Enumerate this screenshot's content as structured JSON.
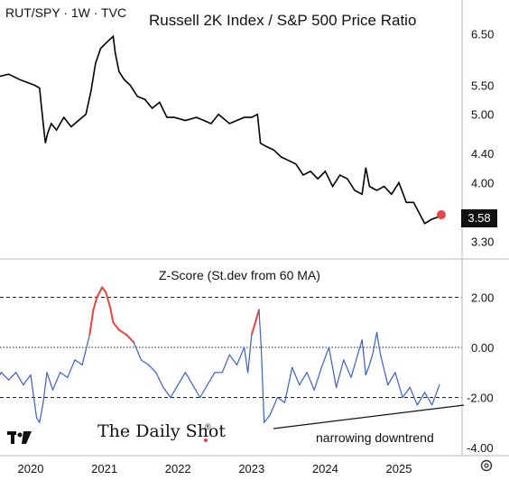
{
  "header": {
    "symbol": "RUT/SPY · 1W · TVC"
  },
  "brand": {
    "tv_logo": "TradingView",
    "daily_shot": "The Daily Shot",
    "registered": "®"
  },
  "current_value": "3.58",
  "colors": {
    "line": "#000000",
    "z_line": "#3b5fc4",
    "z_high": "#e8463c",
    "marker": "#e5484d",
    "badge_bg": "#111111"
  },
  "chart_data": [
    {
      "type": "line",
      "title": "Russell 2K Index / S&P 500 Price Ratio",
      "scale": "log",
      "y_ticks": [
        "6.50",
        "5.50",
        "5.00",
        "4.40",
        "4.00",
        "3.30"
      ],
      "x_ticks": [
        "2020",
        "2021",
        "2022",
        "2023",
        "2024",
        "2025"
      ],
      "series": [
        {
          "x": [
            2019.55,
            2019.7,
            2019.85,
            2019.95,
            2020.05,
            2020.12,
            2020.17,
            2020.2,
            2020.23,
            2020.28,
            2020.35,
            2020.45,
            2020.55,
            2020.65,
            2020.75,
            2020.82,
            2020.88,
            2020.95,
            2021.05,
            2021.12,
            2021.15,
            2021.2,
            2021.27,
            2021.35,
            2021.45,
            2021.55,
            2021.65,
            2021.75,
            2021.85,
            2021.95,
            2022.1,
            2022.25,
            2022.35,
            2022.45,
            2022.55,
            2022.6,
            2022.7,
            2022.8,
            2022.9,
            2023.0,
            2023.08,
            2023.12,
            2023.2,
            2023.3,
            2023.4,
            2023.5,
            2023.6,
            2023.7,
            2023.8,
            2023.9,
            2024.0,
            2024.1,
            2024.2,
            2024.3,
            2024.4,
            2024.5,
            2024.55,
            2024.6,
            2024.7,
            2024.8,
            2024.9,
            2025.0,
            2025.1,
            2025.2,
            2025.3,
            2025.35,
            2025.45,
            2025.55
          ],
          "y": [
            5.65,
            5.7,
            5.6,
            5.55,
            5.5,
            5.45,
            4.85,
            4.55,
            4.7,
            4.85,
            4.75,
            4.95,
            4.8,
            4.9,
            5.0,
            5.4,
            5.9,
            6.2,
            6.35,
            6.45,
            6.1,
            5.75,
            5.6,
            5.5,
            5.3,
            5.25,
            5.1,
            5.2,
            4.95,
            4.95,
            4.9,
            4.95,
            4.9,
            4.85,
            5.0,
            4.95,
            4.85,
            4.9,
            4.95,
            4.95,
            5.0,
            4.55,
            4.5,
            4.45,
            4.35,
            4.3,
            4.25,
            4.1,
            4.15,
            4.05,
            4.15,
            3.95,
            4.1,
            4.05,
            3.9,
            3.85,
            4.2,
            3.95,
            3.9,
            3.95,
            3.85,
            4.0,
            3.75,
            3.75,
            3.58,
            3.5,
            3.55,
            3.58
          ]
        }
      ]
    },
    {
      "type": "line",
      "title": "Z-Score (St.dev from 60 MA)",
      "y_ticks": [
        "2.00",
        "0.00",
        "-2.00",
        "-4.00"
      ],
      "reference_lines": [
        2,
        0,
        -2
      ],
      "annotation": "narrowing downtrend",
      "series": [
        {
          "x": [
            2019.5,
            2019.6,
            2019.7,
            2019.8,
            2019.9,
            2020.0,
            2020.08,
            2020.12,
            2020.17,
            2020.22,
            2020.3,
            2020.4,
            2020.5,
            2020.6,
            2020.7,
            2020.8,
            2020.85,
            2020.9,
            2020.97,
            2021.02,
            2021.08,
            2021.12,
            2021.2,
            2021.3,
            2021.4,
            2021.5,
            2021.6,
            2021.7,
            2021.8,
            2021.9,
            2022.0,
            2022.1,
            2022.2,
            2022.3,
            2022.4,
            2022.5,
            2022.6,
            2022.7,
            2022.8,
            2022.9,
            2022.95,
            2023.0,
            2023.05,
            2023.1,
            2023.13,
            2023.17,
            2023.25,
            2023.35,
            2023.45,
            2023.55,
            2023.65,
            2023.75,
            2023.85,
            2023.95,
            2024.05,
            2024.15,
            2024.25,
            2024.35,
            2024.45,
            2024.5,
            2024.55,
            2024.6,
            2024.65,
            2024.7,
            2024.75,
            2024.85,
            2024.95,
            2025.05,
            2025.15,
            2025.25,
            2025.35,
            2025.45,
            2025.55
          ],
          "y": [
            -1.5,
            -1.0,
            -1.3,
            -1.0,
            -1.5,
            -1.1,
            -2.8,
            -3.0,
            -2.2,
            -1.0,
            -1.7,
            -1.0,
            -1.2,
            -0.5,
            -0.7,
            0.5,
            1.5,
            2.0,
            2.4,
            2.2,
            1.6,
            1.0,
            0.7,
            0.5,
            0.2,
            -0.5,
            -0.7,
            -1.0,
            -1.6,
            -2.0,
            -1.5,
            -1.0,
            -1.5,
            -2.0,
            -1.5,
            -1.0,
            -1.0,
            -0.3,
            -0.7,
            0.0,
            -1.0,
            0.5,
            1.0,
            1.5,
            0.0,
            -3.0,
            -2.7,
            -2.0,
            -2.2,
            -0.8,
            -1.5,
            -1.0,
            -1.7,
            -0.8,
            0.0,
            -1.6,
            -0.5,
            -1.2,
            -0.2,
            0.3,
            -1.1,
            -0.7,
            -0.2,
            0.6,
            -0.3,
            -1.5,
            -1.0,
            -2.0,
            -1.6,
            -2.3,
            -1.8,
            -2.3,
            -1.5
          ]
        }
      ],
      "highlight_above": 0.0
    }
  ]
}
